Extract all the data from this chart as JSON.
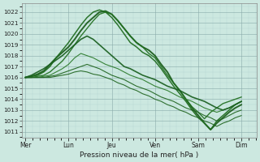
{
  "xlabel": "Pression niveau de la mer( hPa )",
  "ylim": [
    1010.5,
    1022.8
  ],
  "yticks": [
    1011,
    1012,
    1013,
    1014,
    1015,
    1016,
    1017,
    1018,
    1019,
    1020,
    1021,
    1022
  ],
  "xtick_labels": [
    "Mer",
    "Lun",
    "Jeu",
    "Ven",
    "Sam",
    "Dim"
  ],
  "xtick_positions": [
    0,
    1,
    2,
    3,
    4,
    5
  ],
  "bg_color": "#cce8e0",
  "line_colors": [
    "#1a5c1a",
    "#1e6b1e",
    "#217021",
    "#2a7a2a",
    "#1f641f",
    "#226622",
    "#1a6020"
  ],
  "lws": [
    1.4,
    1.1,
    1.0,
    0.8,
    0.8,
    0.8,
    1.2
  ],
  "series": [
    [
      1016.0,
      1016.1,
      1016.3,
      1016.6,
      1017.2,
      1017.8,
      1018.3,
      1018.8,
      1019.5,
      1020.3,
      1021.0,
      1021.5,
      1022.0,
      1022.1,
      1021.8,
      1021.2,
      1020.5,
      1019.8,
      1019.2,
      1018.8,
      1018.5,
      1018.0,
      1017.2,
      1016.5,
      1015.5,
      1014.8,
      1014.0,
      1013.2,
      1012.5,
      1011.8,
      1011.2,
      1011.8,
      1012.3,
      1012.8,
      1013.2,
      1013.5
    ],
    [
      1016.0,
      1016.1,
      1016.2,
      1016.5,
      1017.0,
      1017.8,
      1018.5,
      1019.2,
      1020.0,
      1020.8,
      1021.5,
      1022.0,
      1022.2,
      1022.0,
      1021.5,
      1020.8,
      1020.0,
      1019.2,
      1018.8,
      1018.3,
      1018.0,
      1017.5,
      1016.8,
      1016.0,
      1015.2,
      1014.5,
      1013.8,
      1013.0,
      1012.3,
      1011.8,
      1011.2,
      1012.0,
      1012.5,
      1013.0,
      1013.5,
      1013.8
    ],
    [
      1016.0,
      1016.0,
      1016.1,
      1016.2,
      1016.5,
      1017.0,
      1017.5,
      1018.2,
      1019.0,
      1019.8,
      1020.5,
      1021.2,
      1021.8,
      1022.0,
      1021.8,
      1021.2,
      1020.5,
      1019.8,
      1019.2,
      1018.8,
      1018.2,
      1017.8,
      1017.0,
      1016.2,
      1015.5,
      1014.8,
      1014.0,
      1013.3,
      1012.8,
      1012.2,
      1012.8,
      1013.2,
      1013.6,
      1013.8,
      1014.0,
      1014.2
    ],
    [
      1016.0,
      1016.0,
      1016.0,
      1016.1,
      1016.2,
      1016.5,
      1016.8,
      1017.2,
      1017.8,
      1018.2,
      1018.0,
      1017.8,
      1017.5,
      1017.2,
      1017.0,
      1016.8,
      1016.5,
      1016.2,
      1016.0,
      1015.8,
      1015.5,
      1015.2,
      1015.0,
      1014.8,
      1014.5,
      1014.2,
      1014.0,
      1013.8,
      1013.5,
      1013.2,
      1013.0,
      1012.8,
      1013.0,
      1013.2,
      1013.5,
      1013.8
    ],
    [
      1016.0,
      1016.0,
      1016.0,
      1016.0,
      1016.1,
      1016.2,
      1016.4,
      1016.6,
      1016.8,
      1017.0,
      1017.2,
      1017.0,
      1016.8,
      1016.5,
      1016.2,
      1016.0,
      1015.8,
      1015.5,
      1015.2,
      1015.0,
      1014.8,
      1014.5,
      1014.2,
      1014.0,
      1013.8,
      1013.5,
      1013.2,
      1013.0,
      1012.8,
      1012.5,
      1012.3,
      1012.0,
      1012.2,
      1012.5,
      1012.8,
      1013.0
    ],
    [
      1016.0,
      1016.0,
      1016.0,
      1016.0,
      1016.0,
      1016.1,
      1016.2,
      1016.3,
      1016.5,
      1016.6,
      1016.5,
      1016.3,
      1016.2,
      1016.0,
      1015.8,
      1015.5,
      1015.3,
      1015.0,
      1014.8,
      1014.5,
      1014.3,
      1014.0,
      1013.8,
      1013.5,
      1013.3,
      1013.0,
      1012.8,
      1012.5,
      1012.3,
      1012.0,
      1011.8,
      1011.5,
      1011.8,
      1012.0,
      1012.3,
      1012.5
    ],
    [
      1016.0,
      1016.2,
      1016.5,
      1016.8,
      1017.2,
      1017.6,
      1018.0,
      1018.5,
      1019.0,
      1019.5,
      1019.8,
      1019.5,
      1019.0,
      1018.5,
      1018.0,
      1017.5,
      1017.0,
      1016.8,
      1016.5,
      1016.2,
      1016.0,
      1015.8,
      1015.5,
      1015.2,
      1015.0,
      1014.8,
      1014.5,
      1014.2,
      1014.0,
      1013.8,
      1013.5,
      1013.2,
      1013.0,
      1013.2,
      1013.5,
      1013.8
    ]
  ]
}
